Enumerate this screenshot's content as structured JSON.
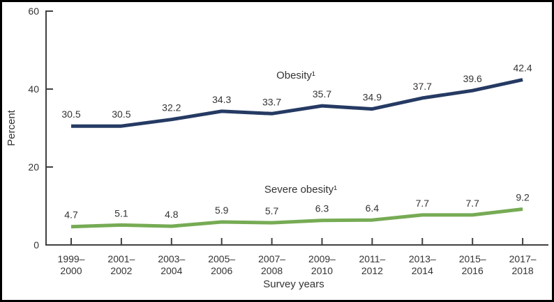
{
  "chart_data": {
    "type": "line",
    "title": "",
    "xlabel": "Survey years",
    "ylabel": "Percent",
    "ylim": [
      0,
      60
    ],
    "yticks": [
      0,
      20,
      40,
      60
    ],
    "grid": false,
    "legend_position": "inline-labels-above-lines",
    "categories": [
      [
        "1999–",
        "2000"
      ],
      [
        "2001–",
        "2002"
      ],
      [
        "2003–",
        "2004"
      ],
      [
        "2005–",
        "2006"
      ],
      [
        "2007–",
        "2008"
      ],
      [
        "2009–",
        "2010"
      ],
      [
        "2011–",
        "2012"
      ],
      [
        "2013–",
        "2014"
      ],
      [
        "2015–",
        "2016"
      ],
      [
        "2017–",
        "2018"
      ]
    ],
    "series": [
      {
        "name": "Obesity¹",
        "color": "#253a63",
        "values": [
          30.5,
          30.5,
          32.2,
          34.3,
          33.7,
          35.7,
          34.9,
          37.7,
          39.6,
          42.4
        ]
      },
      {
        "name": "Severe obesity¹",
        "color": "#76ab54",
        "values": [
          4.7,
          5.1,
          4.8,
          5.9,
          5.7,
          6.3,
          6.4,
          7.7,
          7.7,
          9.2
        ]
      }
    ]
  },
  "colors": {
    "axis": "#404040",
    "text": "#333333",
    "border": "#000000",
    "background": "#ffffff"
  }
}
